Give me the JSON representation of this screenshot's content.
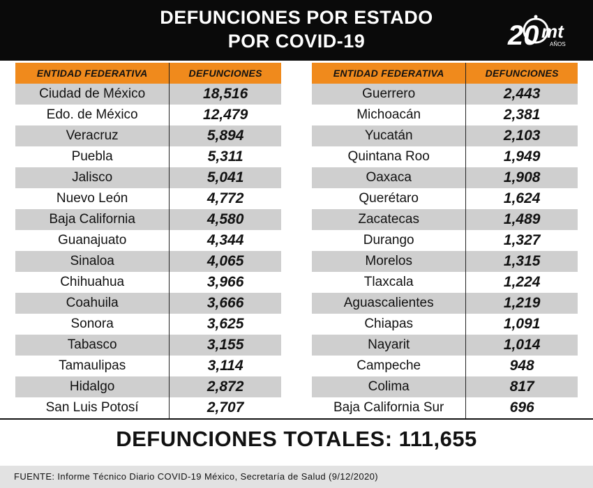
{
  "header": {
    "title_line1": "DEFUNCIONES POR ESTADO",
    "title_line2": "POR COVID-19",
    "logo_number": "20",
    "logo_letters": "mt",
    "logo_sub": "AÑOS"
  },
  "table_headers": {
    "state": "ENTIDAD FEDERATIVA",
    "deaths": "DEFUNCIONES"
  },
  "chart_data": {
    "type": "table",
    "columns": [
      "ENTIDAD FEDERATIVA",
      "DEFUNCIONES"
    ],
    "rows_left": [
      {
        "state": "Ciudad de México",
        "deaths": "18,516"
      },
      {
        "state": "Edo. de México",
        "deaths": "12,479"
      },
      {
        "state": "Veracruz",
        "deaths": "5,894"
      },
      {
        "state": "Puebla",
        "deaths": "5,311"
      },
      {
        "state": "Jalisco",
        "deaths": "5,041"
      },
      {
        "state": "Nuevo León",
        "deaths": "4,772"
      },
      {
        "state": "Baja California",
        "deaths": "4,580"
      },
      {
        "state": "Guanajuato",
        "deaths": "4,344"
      },
      {
        "state": "Sinaloa",
        "deaths": "4,065"
      },
      {
        "state": "Chihuahua",
        "deaths": "3,966"
      },
      {
        "state": "Coahuila",
        "deaths": "3,666"
      },
      {
        "state": "Sonora",
        "deaths": "3,625"
      },
      {
        "state": "Tabasco",
        "deaths": "3,155"
      },
      {
        "state": "Tamaulipas",
        "deaths": "3,114"
      },
      {
        "state": "Hidalgo",
        "deaths": "2,872"
      },
      {
        "state": "San Luis Potosí",
        "deaths": "2,707"
      }
    ],
    "rows_right": [
      {
        "state": "Guerrero",
        "deaths": "2,443"
      },
      {
        "state": "Michoacán",
        "deaths": "2,381"
      },
      {
        "state": "Yucatán",
        "deaths": "2,103"
      },
      {
        "state": "Quintana Roo",
        "deaths": "1,949"
      },
      {
        "state": "Oaxaca",
        "deaths": "1,908"
      },
      {
        "state": "Querétaro",
        "deaths": "1,624"
      },
      {
        "state": "Zacatecas",
        "deaths": "1,489"
      },
      {
        "state": "Durango",
        "deaths": "1,327"
      },
      {
        "state": "Morelos",
        "deaths": "1,315"
      },
      {
        "state": "Tlaxcala",
        "deaths": "1,224"
      },
      {
        "state": "Aguascalientes",
        "deaths": "1,219"
      },
      {
        "state": "Chiapas",
        "deaths": "1,091"
      },
      {
        "state": "Nayarit",
        "deaths": "1,014"
      },
      {
        "state": "Campeche",
        "deaths": "948"
      },
      {
        "state": "Colima",
        "deaths": "817"
      },
      {
        "state": "Baja California Sur",
        "deaths": "696"
      }
    ]
  },
  "total_text": "DEFUNCIONES TOTALES: 111,655",
  "source_text": "FUENTE: Informe Técnico Diario COVID-19 México, Secretaría de Salud (9/12/2020)",
  "colors": {
    "header_bg": "#0a0a0a",
    "column_header_bg": "#f08a1c",
    "row_stripe": "#cfcfcf",
    "footer_bg": "#e2e2e2"
  }
}
